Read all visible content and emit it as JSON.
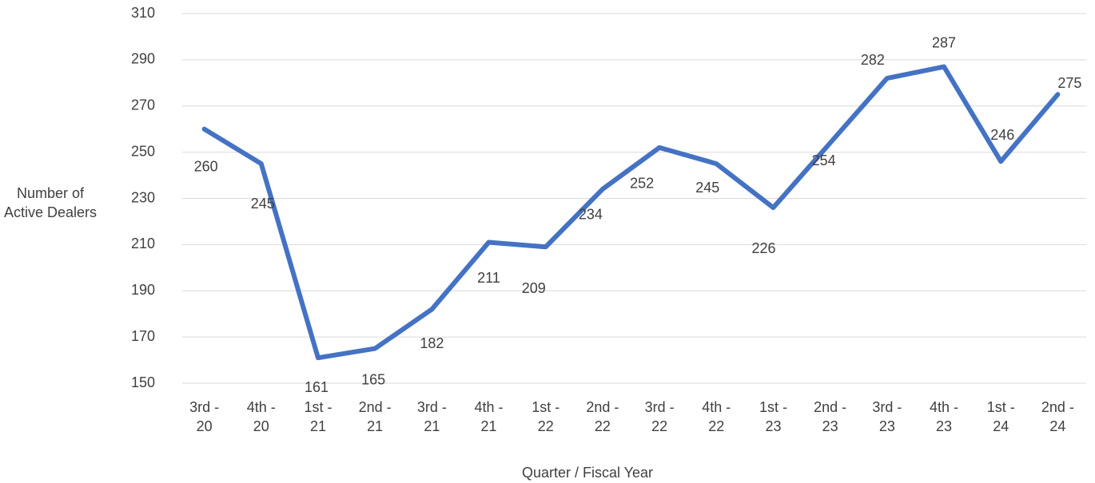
{
  "chart_data": {
    "type": "line",
    "x_label": "Quarter / Fiscal Year",
    "y_label": "Number of Active Dealers",
    "categories": [
      "3rd - 20",
      "4th - 20",
      "1st - 21",
      "2nd - 21",
      "3rd - 21",
      "4th - 21",
      "1st - 22",
      "2nd - 22",
      "3rd - 22",
      "4th - 22",
      "1st - 23",
      "2nd - 23",
      "3rd - 23",
      "4th - 23",
      "1st - 24",
      "2nd - 24"
    ],
    "values": [
      260,
      245,
      161,
      165,
      182,
      211,
      209,
      234,
      252,
      245,
      226,
      254,
      282,
      287,
      246,
      275
    ],
    "color": "#4472c4",
    "ylim": [
      150,
      310
    ],
    "yticks": [
      150,
      170,
      190,
      210,
      230,
      250,
      270,
      290,
      310
    ],
    "grid": true
  }
}
